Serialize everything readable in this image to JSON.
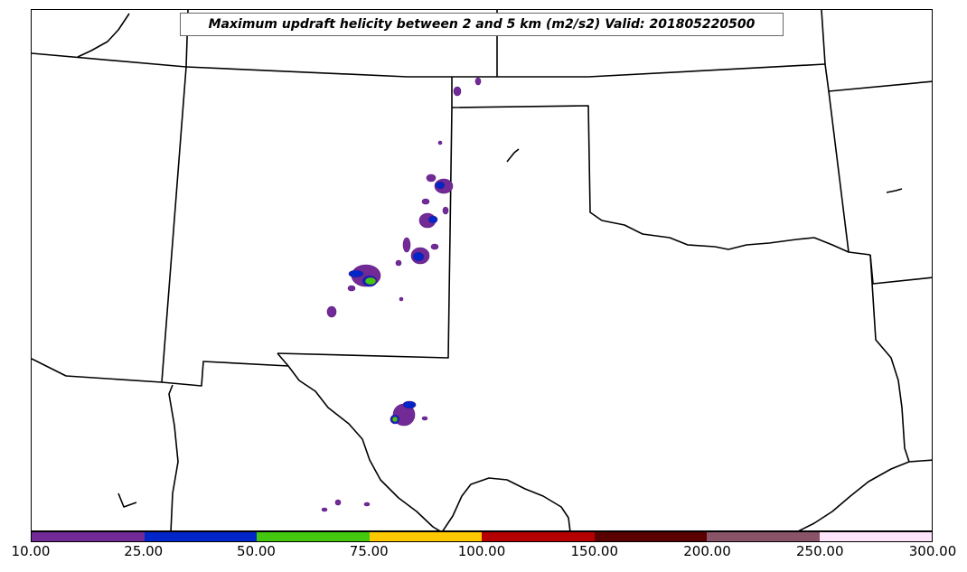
{
  "title": "Maximum updraft helicity between 2 and 5 km (m2/s2) Valid: 201805220500",
  "colorbar": {
    "colors": [
      "#722b96",
      "#0026c9",
      "#43c80f",
      "#ffc800",
      "#b50000",
      "#5a0000",
      "#8a5468",
      "#fde4fa"
    ],
    "ticks": [
      "10.00",
      "25.00",
      "50.00",
      "75.00",
      "100.00",
      "150.00",
      "200.00",
      "250.00",
      "300.00"
    ]
  },
  "map": {
    "boundary_color": "#000000",
    "regions": [
      "state-boundaries",
      "coastline-gulf"
    ]
  }
}
